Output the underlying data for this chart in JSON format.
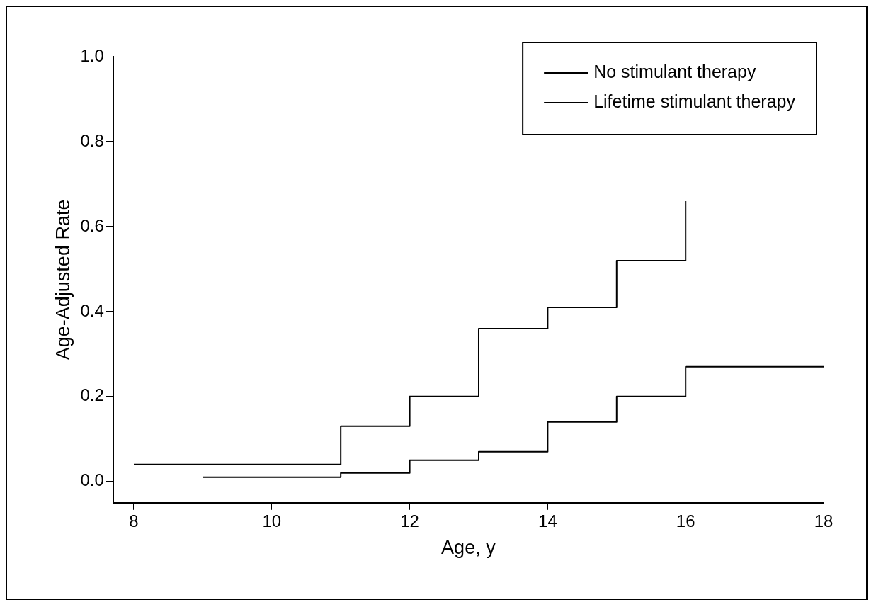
{
  "chart_data": {
    "type": "step",
    "xlabel": "Age, y",
    "ylabel": "Age-Adjusted Rate",
    "xlim": [
      7.7,
      18
    ],
    "xticks": [
      8,
      10,
      12,
      14,
      16,
      18
    ],
    "ylim": [
      -0.05,
      1.0
    ],
    "yticks": [
      {
        "value": 0,
        "label": "0.0"
      },
      0.2,
      0.4,
      0.6,
      0.8,
      {
        "value": 1,
        "label": "1.0"
      }
    ],
    "grid": false,
    "legend": "top right",
    "marker": "none",
    "line_style": "solid",
    "series": [
      {
        "name": "No stimulant therapy",
        "color": "#000000",
        "x": [
          8,
          11,
          12,
          13,
          14,
          15,
          16
        ],
        "values": [
          0.04,
          0.13,
          0.2,
          0.36,
          0.41,
          0.52,
          0.66
        ]
      },
      {
        "name": "Lifetime stimulant therapy",
        "color": "#000000",
        "x": [
          9,
          11,
          12,
          13,
          14,
          15,
          16,
          18
        ],
        "values": [
          0.01,
          0.02,
          0.05,
          0.07,
          0.14,
          0.2,
          0.27,
          0.27
        ]
      }
    ]
  }
}
